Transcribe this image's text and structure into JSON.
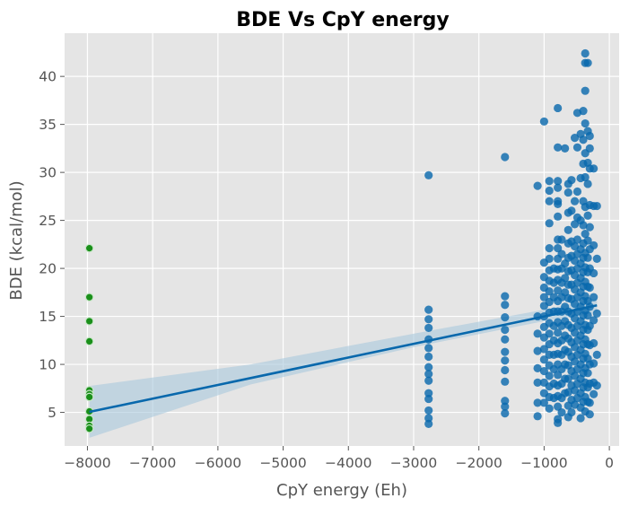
{
  "chart_data": {
    "type": "scatter",
    "title": "BDE Vs CpY energy",
    "xlabel": "CpY energy (Eh)",
    "ylabel": "BDE (kcal/mol)",
    "xlim": [
      -8350,
      150
    ],
    "ylim": [
      1.5,
      44.5
    ],
    "grid": true,
    "background": "#e5e5e5",
    "x_ticks": [
      -8000,
      -7000,
      -6000,
      -5000,
      -4000,
      -3000,
      -2000,
      -1000,
      0
    ],
    "x_tick_labels": [
      "−8000",
      "−7000",
      "−6000",
      "−5000",
      "−4000",
      "−3000",
      "−2000",
      "−1000",
      "0"
    ],
    "y_ticks": [
      5,
      10,
      15,
      20,
      25,
      30,
      35,
      40
    ],
    "y_tick_labels": [
      "5",
      "10",
      "15",
      "20",
      "25",
      "30",
      "35",
      "40"
    ],
    "colors": {
      "scatter": "#0868ac",
      "highlight": "#1a8f1a",
      "fit_line": "#0868ac",
      "confidence_band": "#a9c8dc"
    },
    "series": [
      {
        "points": [
          [
            -2770,
            29.7
          ],
          [
            -2770,
            15.7
          ],
          [
            -2770,
            14.7
          ],
          [
            -2770,
            13.8
          ],
          [
            -2770,
            12.6
          ],
          [
            -2770,
            11.7
          ],
          [
            -2770,
            10.8
          ],
          [
            -2770,
            9.7
          ],
          [
            -2770,
            9.0
          ],
          [
            -2770,
            8.3
          ],
          [
            -2770,
            7.0
          ],
          [
            -2770,
            6.4
          ],
          [
            -2770,
            5.2
          ],
          [
            -2770,
            4.4
          ],
          [
            -2770,
            3.8
          ],
          [
            -1600,
            31.6
          ],
          [
            -1600,
            17.1
          ],
          [
            -1600,
            16.2
          ],
          [
            -1600,
            14.9
          ],
          [
            -1600,
            13.6
          ],
          [
            -1600,
            12.6
          ],
          [
            -1600,
            11.3
          ],
          [
            -1600,
            10.4
          ],
          [
            -1600,
            9.4
          ],
          [
            -1600,
            8.2
          ],
          [
            -1600,
            6.2
          ],
          [
            -1600,
            5.6
          ],
          [
            -1600,
            4.9
          ],
          [
            -1100,
            28.6
          ],
          [
            -1100,
            15.0
          ],
          [
            -1100,
            13.2
          ],
          [
            -1100,
            11.4
          ],
          [
            -1100,
            9.6
          ],
          [
            -1100,
            8.1
          ],
          [
            -1100,
            6.0
          ],
          [
            -1100,
            4.6
          ],
          [
            -1000,
            35.3
          ],
          [
            -1000,
            20.6
          ],
          [
            -1000,
            19.1
          ],
          [
            -1000,
            18.0
          ],
          [
            -1000,
            17.0
          ],
          [
            -1000,
            16.1
          ],
          [
            -1000,
            15.0
          ],
          [
            -1000,
            13.9
          ],
          [
            -1000,
            12.8
          ],
          [
            -1000,
            11.6
          ],
          [
            -1000,
            10.5
          ],
          [
            -1000,
            9.3
          ],
          [
            -1000,
            8.1
          ],
          [
            -1000,
            7.0
          ],
          [
            -1000,
            6.0
          ],
          [
            -920,
            29.1
          ],
          [
            -920,
            28.1
          ],
          [
            -920,
            27.0
          ],
          [
            -920,
            24.7
          ],
          [
            -920,
            22.1
          ],
          [
            -920,
            21.0
          ],
          [
            -920,
            19.8
          ],
          [
            -920,
            18.7
          ],
          [
            -920,
            17.6
          ],
          [
            -920,
            16.5
          ],
          [
            -920,
            15.4
          ],
          [
            -920,
            14.3
          ],
          [
            -920,
            13.2
          ],
          [
            -920,
            12.1
          ],
          [
            -920,
            11.0
          ],
          [
            -920,
            9.9
          ],
          [
            -920,
            8.8
          ],
          [
            -920,
            7.7
          ],
          [
            -920,
            6.6
          ],
          [
            -920,
            5.4
          ],
          [
            -850,
            20.0
          ],
          [
            -850,
            18.5
          ],
          [
            -850,
            17.0
          ],
          [
            -850,
            15.5
          ],
          [
            -850,
            14.0
          ],
          [
            -850,
            12.5
          ],
          [
            -850,
            11.0
          ],
          [
            -850,
            9.5
          ],
          [
            -850,
            8.0
          ],
          [
            -850,
            6.5
          ],
          [
            -790,
            36.7
          ],
          [
            -790,
            32.6
          ],
          [
            -790,
            29.1
          ],
          [
            -790,
            28.4
          ],
          [
            -790,
            27.0
          ],
          [
            -790,
            26.7
          ],
          [
            -790,
            25.4
          ],
          [
            -790,
            23.0
          ],
          [
            -790,
            22.1
          ],
          [
            -790,
            21.0
          ],
          [
            -790,
            19.9
          ],
          [
            -790,
            18.8
          ],
          [
            -790,
            17.7
          ],
          [
            -790,
            16.6
          ],
          [
            -790,
            15.5
          ],
          [
            -790,
            14.4
          ],
          [
            -790,
            13.3
          ],
          [
            -790,
            12.2
          ],
          [
            -790,
            11.1
          ],
          [
            -790,
            10.0
          ],
          [
            -790,
            8.9
          ],
          [
            -790,
            7.8
          ],
          [
            -790,
            6.7
          ],
          [
            -790,
            5.6
          ],
          [
            -790,
            4.3
          ],
          [
            -790,
            3.9
          ],
          [
            -730,
            23.0
          ],
          [
            -730,
            21.5
          ],
          [
            -730,
            20.0
          ],
          [
            -730,
            18.5
          ],
          [
            -730,
            17.0
          ],
          [
            -730,
            15.5
          ],
          [
            -730,
            14.0
          ],
          [
            -730,
            12.5
          ],
          [
            -730,
            11.0
          ],
          [
            -730,
            9.5
          ],
          [
            -730,
            8.0
          ],
          [
            -730,
            6.5
          ],
          [
            -730,
            5.0
          ],
          [
            -680,
            32.5
          ],
          [
            -680,
            20.5
          ],
          [
            -680,
            19.0
          ],
          [
            -680,
            17.5
          ],
          [
            -680,
            16.0
          ],
          [
            -680,
            14.5
          ],
          [
            -680,
            13.0
          ],
          [
            -680,
            11.5
          ],
          [
            -680,
            10.0
          ],
          [
            -680,
            8.5
          ],
          [
            -680,
            7.0
          ],
          [
            -630,
            28.8
          ],
          [
            -630,
            27.9
          ],
          [
            -630,
            25.8
          ],
          [
            -630,
            24.0
          ],
          [
            -630,
            22.6
          ],
          [
            -630,
            21.1
          ],
          [
            -630,
            19.7
          ],
          [
            -630,
            18.3
          ],
          [
            -630,
            16.9
          ],
          [
            -630,
            15.5
          ],
          [
            -630,
            14.1
          ],
          [
            -630,
            12.7
          ],
          [
            -630,
            11.3
          ],
          [
            -630,
            9.9
          ],
          [
            -630,
            8.5
          ],
          [
            -630,
            7.1
          ],
          [
            -630,
            5.7
          ],
          [
            -630,
            4.5
          ],
          [
            -580,
            29.2
          ],
          [
            -580,
            26.0
          ],
          [
            -580,
            22.8
          ],
          [
            -580,
            21.3
          ],
          [
            -580,
            19.8
          ],
          [
            -580,
            18.3
          ],
          [
            -580,
            16.8
          ],
          [
            -580,
            15.3
          ],
          [
            -580,
            13.8
          ],
          [
            -580,
            12.3
          ],
          [
            -580,
            10.8
          ],
          [
            -580,
            9.3
          ],
          [
            -580,
            7.8
          ],
          [
            -580,
            6.3
          ],
          [
            -580,
            5.0
          ],
          [
            -530,
            33.6
          ],
          [
            -530,
            27.0
          ],
          [
            -530,
            24.6
          ],
          [
            -530,
            22.3
          ],
          [
            -530,
            20.8
          ],
          [
            -530,
            19.3
          ],
          [
            -530,
            17.8
          ],
          [
            -530,
            16.3
          ],
          [
            -530,
            14.8
          ],
          [
            -530,
            13.3
          ],
          [
            -530,
            11.8
          ],
          [
            -530,
            10.3
          ],
          [
            -530,
            8.8
          ],
          [
            -530,
            7.3
          ],
          [
            -530,
            5.8
          ],
          [
            -490,
            36.2
          ],
          [
            -490,
            32.6
          ],
          [
            -490,
            28.0
          ],
          [
            -490,
            25.3
          ],
          [
            -490,
            23.0
          ],
          [
            -490,
            21.5
          ],
          [
            -490,
            20.0
          ],
          [
            -490,
            18.5
          ],
          [
            -490,
            17.0
          ],
          [
            -490,
            15.5
          ],
          [
            -490,
            14.0
          ],
          [
            -490,
            12.5
          ],
          [
            -490,
            11.0
          ],
          [
            -490,
            9.5
          ],
          [
            -490,
            8.0
          ],
          [
            -490,
            6.5
          ],
          [
            -440,
            34.0
          ],
          [
            -440,
            29.4
          ],
          [
            -440,
            25.0
          ],
          [
            -440,
            22.0
          ],
          [
            -440,
            20.5
          ],
          [
            -440,
            19.0
          ],
          [
            -440,
            17.5
          ],
          [
            -440,
            16.0
          ],
          [
            -440,
            14.5
          ],
          [
            -440,
            13.0
          ],
          [
            -440,
            11.5
          ],
          [
            -440,
            10.0
          ],
          [
            -440,
            8.5
          ],
          [
            -440,
            7.0
          ],
          [
            -440,
            5.5
          ],
          [
            -440,
            4.4
          ],
          [
            -400,
            36.4
          ],
          [
            -400,
            33.4
          ],
          [
            -400,
            30.9
          ],
          [
            -400,
            27.0
          ],
          [
            -400,
            24.5
          ],
          [
            -400,
            22.6
          ],
          [
            -400,
            21.1
          ],
          [
            -400,
            19.6
          ],
          [
            -400,
            18.1
          ],
          [
            -400,
            16.6
          ],
          [
            -400,
            15.1
          ],
          [
            -400,
            13.6
          ],
          [
            -400,
            12.1
          ],
          [
            -400,
            10.6
          ],
          [
            -400,
            9.1
          ],
          [
            -400,
            7.6
          ],
          [
            -400,
            6.1
          ],
          [
            -370,
            42.4
          ],
          [
            -370,
            41.4
          ],
          [
            -370,
            38.5
          ],
          [
            -370,
            35.1
          ],
          [
            -370,
            32.0
          ],
          [
            -370,
            29.5
          ],
          [
            -370,
            26.4
          ],
          [
            -370,
            23.6
          ],
          [
            -370,
            21.6
          ],
          [
            -370,
            20.1
          ],
          [
            -370,
            18.6
          ],
          [
            -370,
            17.1
          ],
          [
            -370,
            15.6
          ],
          [
            -370,
            14.1
          ],
          [
            -370,
            12.6
          ],
          [
            -370,
            11.1
          ],
          [
            -370,
            9.6
          ],
          [
            -370,
            8.1
          ],
          [
            -370,
            6.6
          ],
          [
            -370,
            5.1
          ],
          [
            -330,
            41.4
          ],
          [
            -330,
            34.3
          ],
          [
            -330,
            31.0
          ],
          [
            -330,
            28.8
          ],
          [
            -330,
            25.5
          ],
          [
            -330,
            22.9
          ],
          [
            -330,
            21.1
          ],
          [
            -330,
            19.6
          ],
          [
            -330,
            18.1
          ],
          [
            -330,
            16.6
          ],
          [
            -330,
            15.1
          ],
          [
            -330,
            13.6
          ],
          [
            -330,
            12.1
          ],
          [
            -330,
            10.6
          ],
          [
            -330,
            9.1
          ],
          [
            -330,
            7.6
          ],
          [
            -330,
            6.1
          ],
          [
            -300,
            33.8
          ],
          [
            -300,
            32.5
          ],
          [
            -300,
            30.4
          ],
          [
            -300,
            26.6
          ],
          [
            -300,
            24.3
          ],
          [
            -300,
            22.0
          ],
          [
            -300,
            20.0
          ],
          [
            -300,
            18.0
          ],
          [
            -300,
            16.0
          ],
          [
            -300,
            14.0
          ],
          [
            -300,
            12.0
          ],
          [
            -300,
            10.0
          ],
          [
            -300,
            8.0
          ],
          [
            -300,
            6.0
          ],
          [
            -300,
            4.8
          ],
          [
            -240,
            30.4
          ],
          [
            -240,
            26.5
          ],
          [
            -240,
            22.4
          ],
          [
            -240,
            19.5
          ],
          [
            -240,
            17.0
          ],
          [
            -240,
            14.6
          ],
          [
            -240,
            12.2
          ],
          [
            -240,
            10.1
          ],
          [
            -240,
            8.1
          ],
          [
            -240,
            6.9
          ],
          [
            -190,
            26.5
          ],
          [
            -190,
            21.0
          ],
          [
            -190,
            15.3
          ],
          [
            -190,
            11.0
          ],
          [
            -190,
            7.8
          ]
        ]
      },
      {
        "points": [
          [
            -7970,
            22.1
          ],
          [
            -7970,
            17.0
          ],
          [
            -7970,
            14.5
          ],
          [
            -7970,
            12.4
          ],
          [
            -7970,
            7.3
          ],
          [
            -7970,
            6.9
          ],
          [
            -7970,
            6.6
          ],
          [
            -7970,
            5.1
          ],
          [
            -7970,
            4.3
          ],
          [
            -7970,
            3.6
          ],
          [
            -7970,
            3.3
          ]
        ]
      }
    ],
    "fit": {
      "x": [
        -7970,
        -190
      ],
      "y": [
        5.05,
        16.15
      ],
      "band_x": [
        -7970,
        -5500,
        -3000,
        -1000,
        -190
      ],
      "band_upper": [
        7.75,
        10.0,
        13.2,
        15.7,
        16.9
      ],
      "band_lower": [
        2.35,
        7.9,
        11.8,
        14.5,
        15.4
      ]
    }
  }
}
